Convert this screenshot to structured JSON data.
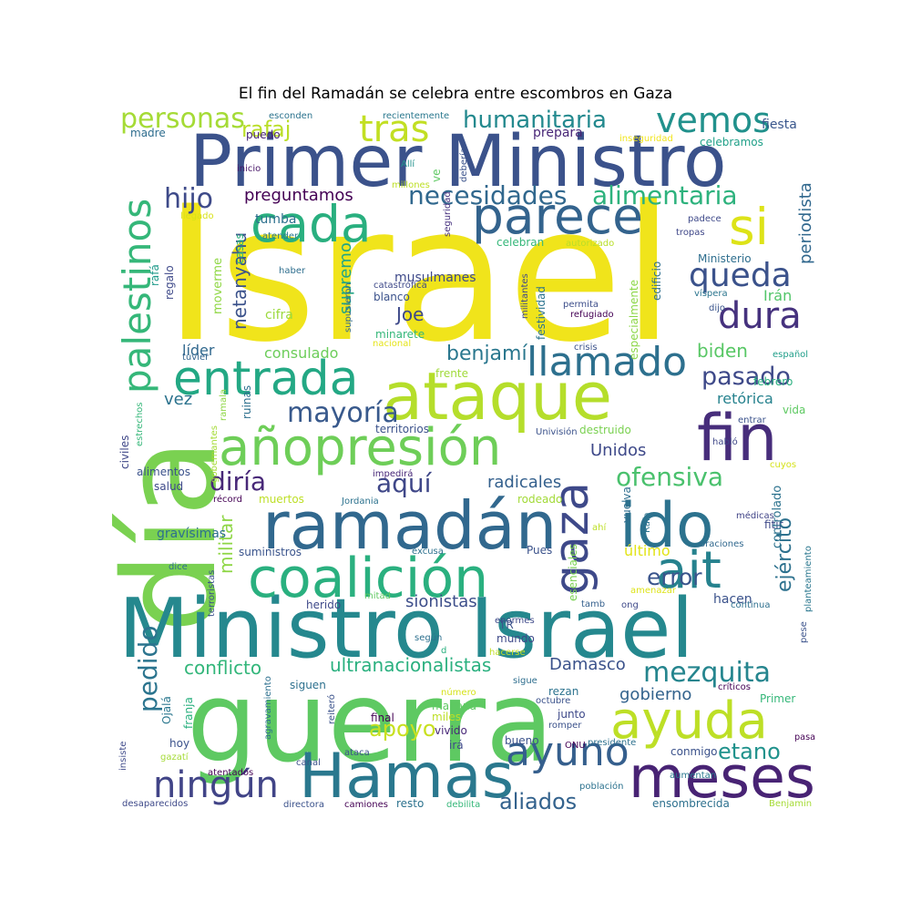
{
  "chart_data": {
    "type": "wordcloud",
    "title": "El fin del Ramadán se celebra entre escombros en Gaza",
    "words": [
      {
        "text": "Israel",
        "color": "#f0e41b"
      },
      {
        "text": "guerra",
        "color": "#5ec962"
      },
      {
        "text": "día",
        "color": "#7ad151"
      },
      {
        "text": "Primer Ministro",
        "color": "#3b528b"
      },
      {
        "text": "Ministro Israel",
        "color": "#25888e"
      },
      {
        "text": "ramadán",
        "color": "#31688e"
      },
      {
        "text": "ataque",
        "color": "#b5de2b"
      },
      {
        "text": "coalición",
        "color": "#2ab07f"
      },
      {
        "text": "Hamas",
        "color": "#2a788e"
      },
      {
        "text": "entrada",
        "color": "#23a884"
      },
      {
        "text": "añopresión",
        "color": "#6ece58"
      },
      {
        "text": "fin",
        "color": "#472d7b"
      },
      {
        "text": "cada",
        "color": "#29af7f"
      },
      {
        "text": "parece",
        "color": "#33638d"
      },
      {
        "text": "ido",
        "color": "#2c728e"
      },
      {
        "text": "meses",
        "color": "#482374"
      },
      {
        "text": "gaza",
        "color": "#3e4989"
      },
      {
        "text": "ayuda",
        "color": "#bddf26"
      },
      {
        "text": "palestinos",
        "color": "#35b779"
      },
      {
        "text": "si",
        "color": "#dde318"
      },
      {
        "text": "ait",
        "color": "#26828e"
      },
      {
        "text": "llamado",
        "color": "#2d708e"
      },
      {
        "text": "ningún",
        "color": "#414487"
      },
      {
        "text": "ayuno",
        "color": "#355f8d"
      },
      {
        "text": "dura",
        "color": "#46327e"
      },
      {
        "text": "queda",
        "color": "#3b528b"
      },
      {
        "text": "vemos",
        "color": "#21918c"
      },
      {
        "text": "tras",
        "color": "#c2df23"
      },
      {
        "text": "personas",
        "color": "#a5db36"
      },
      {
        "text": "hijo",
        "color": "#3e4a89"
      },
      {
        "text": "necesidades",
        "color": "#31688e"
      },
      {
        "text": "alimentaria",
        "color": "#2db27d"
      },
      {
        "text": "humanitaria",
        "color": "#23898e"
      },
      {
        "text": "mayoría",
        "color": "#38598c"
      },
      {
        "text": "pasado",
        "color": "#3e4989"
      },
      {
        "text": "mezquita",
        "color": "#25858e"
      },
      {
        "text": "diría",
        "color": "#482878"
      },
      {
        "text": "aquí",
        "color": "#3f4788"
      },
      {
        "text": "ofensiva",
        "color": "#4ac16d"
      },
      {
        "text": "pedido",
        "color": "#2b748e"
      },
      {
        "text": "error",
        "color": "#3a548c"
      },
      {
        "text": "aliados",
        "color": "#33628d"
      },
      {
        "text": "etano",
        "color": "#20928c"
      },
      {
        "text": "rafaj",
        "color": "#bade28"
      },
      {
        "text": "preguntamos",
        "color": "#440154"
      },
      {
        "text": "benjamí",
        "color": "#2a778e"
      },
      {
        "text": "biden",
        "color": "#58c765"
      },
      {
        "text": "ejército",
        "color": "#2d718e"
      },
      {
        "text": "periodista",
        "color": "#31688e"
      },
      {
        "text": "apoyo",
        "color": "#c8e020"
      },
      {
        "text": "conflicto",
        "color": "#32b67a"
      },
      {
        "text": "ultranacionalistas",
        "color": "#2ab07f"
      },
      {
        "text": "Damasco",
        "color": "#3b528b"
      },
      {
        "text": "gobierno",
        "color": "#33638d"
      },
      {
        "text": "Unidos",
        "color": "#3e4989"
      },
      {
        "text": "retórica",
        "color": "#26828e"
      },
      {
        "text": "sionistas",
        "color": "#3d4e8a"
      },
      {
        "text": "radicales",
        "color": "#34608d"
      },
      {
        "text": "netanyahu",
        "color": "#3b528b"
      },
      {
        "text": "supremo",
        "color": "#21a585"
      },
      {
        "text": "Joe",
        "color": "#3e4989"
      },
      {
        "text": "Irán",
        "color": "#52c569"
      },
      {
        "text": "vez",
        "color": "#2c738e"
      },
      {
        "text": "consulado",
        "color": "#6ccd5a"
      },
      {
        "text": "militar",
        "color": "#8ed645"
      },
      {
        "text": "último",
        "color": "#e2e418"
      },
      {
        "text": "hacen",
        "color": "#3b528b"
      },
      {
        "text": "musulmanes",
        "color": "#3e4989"
      },
      {
        "text": "tumba",
        "color": "#2d708e"
      },
      {
        "text": "cifra",
        "color": "#9bd93c"
      },
      {
        "text": "líder",
        "color": "#31688e"
      },
      {
        "text": "blanco",
        "color": "#3b528b"
      },
      {
        "text": "minarete",
        "color": "#35b779"
      },
      {
        "text": "moverme",
        "color": "#8fd744"
      },
      {
        "text": "regalo",
        "color": "#3e4989"
      },
      {
        "text": "rafá",
        "color": "#1f9a8a"
      },
      {
        "text": "casas",
        "color": "#2ab07f"
      },
      {
        "text": "Ministerio",
        "color": "#2e6e8e"
      },
      {
        "text": "fiesta",
        "color": "#39568c"
      },
      {
        "text": "celebramos",
        "color": "#1fa088"
      },
      {
        "text": "prepara",
        "color": "#482677"
      },
      {
        "text": "inseguridad",
        "color": "#f1e51d"
      },
      {
        "text": "recientemente",
        "color": "#2a788e"
      },
      {
        "text": "esconden",
        "color": "#2c738e"
      },
      {
        "text": "madre",
        "color": "#2e6d8e"
      },
      {
        "text": "puedo",
        "color": "#482475"
      },
      {
        "text": "debería",
        "color": "#3b528b"
      },
      {
        "text": "ve",
        "color": "#5ec962"
      },
      {
        "text": "Allí",
        "color": "#21918c"
      },
      {
        "text": "millones",
        "color": "#bddf26"
      },
      {
        "text": "inicio",
        "color": "#481668"
      },
      {
        "text": "llegado",
        "color": "#d8e219"
      },
      {
        "text": "atender",
        "color": "#2a788e"
      },
      {
        "text": "haber",
        "color": "#2e6e8e"
      },
      {
        "text": "seguridad",
        "color": "#46307e"
      },
      {
        "text": "celebran",
        "color": "#35b779"
      },
      {
        "text": "autorizado",
        "color": "#b8de29"
      },
      {
        "text": "padece",
        "color": "#3e4989"
      },
      {
        "text": "tropas",
        "color": "#3f4788"
      },
      {
        "text": "edificio",
        "color": "#2e6f8e"
      },
      {
        "text": "víspera",
        "color": "#2b758e"
      },
      {
        "text": "dijo",
        "color": "#3a548c"
      },
      {
        "text": "permita",
        "color": "#3d4e8a"
      },
      {
        "text": "refugiado",
        "color": "#440154"
      },
      {
        "text": "militantes",
        "color": "#3e4989"
      },
      {
        "text": "festividad",
        "color": "#2c738e"
      },
      {
        "text": "especialmente",
        "color": "#8bd646"
      },
      {
        "text": "crisis",
        "color": "#3b528b"
      },
      {
        "text": "catastrófica",
        "color": "#3e4989"
      },
      {
        "text": "supusieron",
        "color": "#31688e"
      },
      {
        "text": "nacional",
        "color": "#e5e419"
      },
      {
        "text": "tuvier",
        "color": "#33638d"
      },
      {
        "text": "frente",
        "color": "#a0da39"
      },
      {
        "text": "territorios",
        "color": "#3b528b"
      },
      {
        "text": "estrechos",
        "color": "#35b779"
      },
      {
        "text": "ramala",
        "color": "#8ed645"
      },
      {
        "text": "ruinas",
        "color": "#2d708e"
      },
      {
        "text": "civiles",
        "color": "#3f4788"
      },
      {
        "text": "gobernantes",
        "color": "#a5db36"
      },
      {
        "text": "alimentos",
        "color": "#3b528b"
      },
      {
        "text": "salud",
        "color": "#3e4989"
      },
      {
        "text": "récord",
        "color": "#440154"
      },
      {
        "text": "muertos",
        "color": "#bddf26"
      },
      {
        "text": "Jordania",
        "color": "#2c728e"
      },
      {
        "text": "impedirá",
        "color": "#482878"
      },
      {
        "text": "rodeado",
        "color": "#a2da37"
      },
      {
        "text": "vuelva",
        "color": "#2e6e8e"
      },
      {
        "text": "destruido",
        "color": "#7ad151"
      },
      {
        "text": "Univisión",
        "color": "#3b528b"
      },
      {
        "text": "habló",
        "color": "#3f4788"
      },
      {
        "text": "médicas",
        "color": "#414487"
      },
      {
        "text": "cuyos",
        "color": "#d5e21a"
      },
      {
        "text": "fitir",
        "color": "#3e4989"
      },
      {
        "text": "controlado",
        "color": "#2c728e"
      },
      {
        "text": "vida",
        "color": "#5ec962"
      },
      {
        "text": "entrar",
        "color": "#3b528b"
      },
      {
        "text": "febrero",
        "color": "#2ab07f"
      },
      {
        "text": "español",
        "color": "#1f9e89"
      },
      {
        "text": "gravísimas",
        "color": "#2d708e"
      },
      {
        "text": "suministros",
        "color": "#3a548c"
      },
      {
        "text": "excusa",
        "color": "#2d718e"
      },
      {
        "text": "Pues",
        "color": "#3b528b"
      },
      {
        "text": "esenciales",
        "color": "#7ad151"
      },
      {
        "text": "ahí",
        "color": "#bddf26"
      },
      {
        "text": "Rafa",
        "color": "#2c738e"
      },
      {
        "text": "oraciones",
        "color": "#31688e"
      },
      {
        "text": "planteamiento",
        "color": "#2a778e"
      },
      {
        "text": "dice",
        "color": "#2e6e8e"
      },
      {
        "text": "terroristas",
        "color": "#3b528b"
      },
      {
        "text": "herido",
        "color": "#3e4989"
      },
      {
        "text": "mitad",
        "color": "#5ec962"
      },
      {
        "text": "tamb",
        "color": "#35608d"
      },
      {
        "text": "ong",
        "color": "#3e4989"
      },
      {
        "text": "amenazar",
        "color": "#dde318"
      },
      {
        "text": "continua",
        "color": "#2d708e"
      },
      {
        "text": "pese",
        "color": "#3b528b"
      },
      {
        "text": "enormes",
        "color": "#3e4989"
      },
      {
        "text": "TR",
        "color": "#3b528b"
      },
      {
        "text": "mundo",
        "color": "#3e4989"
      },
      {
        "text": "según",
        "color": "#2d708e"
      },
      {
        "text": "d",
        "color": "#2ab07f"
      },
      {
        "text": "hacerse",
        "color": "#c2df23"
      },
      {
        "text": "Ojalá",
        "color": "#2a778e"
      },
      {
        "text": "franja",
        "color": "#2ab07f"
      },
      {
        "text": "número",
        "color": "#d5e21a"
      },
      {
        "text": "reiteró",
        "color": "#3b528b"
      },
      {
        "text": "sigue",
        "color": "#2e6e8e"
      },
      {
        "text": "siguen",
        "color": "#2d708e"
      },
      {
        "text": "mañana",
        "color": "#5ec962"
      },
      {
        "text": "miles",
        "color": "#bddf26"
      },
      {
        "text": "rezan",
        "color": "#2c728e"
      },
      {
        "text": "junto",
        "color": "#3e4989"
      },
      {
        "text": "octubre",
        "color": "#3b528b"
      },
      {
        "text": "críticos",
        "color": "#440154"
      },
      {
        "text": "Primer",
        "color": "#35b779"
      },
      {
        "text": "romper",
        "color": "#3b528b"
      },
      {
        "text": "final",
        "color": "#440154"
      },
      {
        "text": "vivido",
        "color": "#482878"
      },
      {
        "text": "bueno",
        "color": "#3b528b"
      },
      {
        "text": "agravamiento",
        "color": "#2d708e"
      },
      {
        "text": "hoy",
        "color": "#3b528b"
      },
      {
        "text": "insiste",
        "color": "#3e4989"
      },
      {
        "text": "gazatí",
        "color": "#a5db36"
      },
      {
        "text": "ataca",
        "color": "#3b528b"
      },
      {
        "text": "irá",
        "color": "#3e4989"
      },
      {
        "text": "ONU",
        "color": "#440154"
      },
      {
        "text": "presidente",
        "color": "#2d708e"
      },
      {
        "text": "conmigo",
        "color": "#3b528b"
      },
      {
        "text": "pasa",
        "color": "#440154"
      },
      {
        "text": "canal",
        "color": "#3b528b"
      },
      {
        "text": "aumentan",
        "color": "#2a788e"
      },
      {
        "text": "población",
        "color": "#2c728e"
      },
      {
        "text": "atentados",
        "color": "#440154"
      },
      {
        "text": "desaparecidos",
        "color": "#3e4989"
      },
      {
        "text": "directora",
        "color": "#3b528b"
      },
      {
        "text": "camiones",
        "color": "#440154"
      },
      {
        "text": "resto",
        "color": "#2c728e"
      },
      {
        "text": "debilita",
        "color": "#35b779"
      },
      {
        "text": "ensombrecida",
        "color": "#2d708e"
      },
      {
        "text": "Benjamin",
        "color": "#a5db36"
      }
    ]
  }
}
